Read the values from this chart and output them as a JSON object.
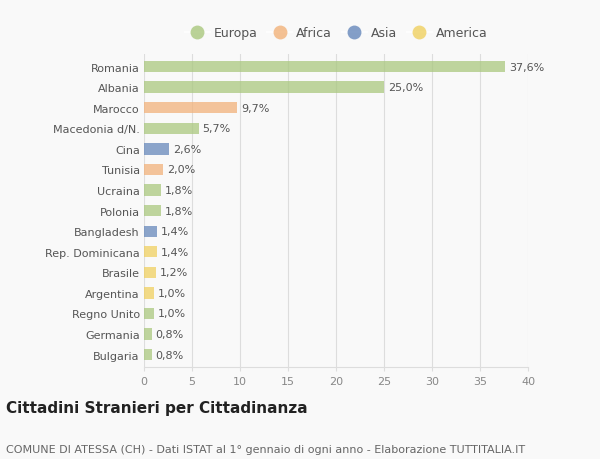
{
  "categories": [
    "Romania",
    "Albania",
    "Marocco",
    "Macedonia d/N.",
    "Cina",
    "Tunisia",
    "Ucraina",
    "Polonia",
    "Bangladesh",
    "Rep. Dominicana",
    "Brasile",
    "Argentina",
    "Regno Unito",
    "Germania",
    "Bulgaria"
  ],
  "values": [
    37.6,
    25.0,
    9.7,
    5.7,
    2.6,
    2.0,
    1.8,
    1.8,
    1.4,
    1.4,
    1.2,
    1.0,
    1.0,
    0.8,
    0.8
  ],
  "labels": [
    "37,6%",
    "25,0%",
    "9,7%",
    "5,7%",
    "2,6%",
    "2,0%",
    "1,8%",
    "1,8%",
    "1,4%",
    "1,4%",
    "1,2%",
    "1,0%",
    "1,0%",
    "0,8%",
    "0,8%"
  ],
  "continents": [
    "Europa",
    "Europa",
    "Africa",
    "Europa",
    "Asia",
    "Africa",
    "Europa",
    "Europa",
    "Asia",
    "America",
    "America",
    "America",
    "Europa",
    "Europa",
    "Europa"
  ],
  "continent_colors": {
    "Europa": "#aac87e",
    "Africa": "#f2b27a",
    "Asia": "#6688bb",
    "America": "#f0d060"
  },
  "legend_order": [
    "Europa",
    "Africa",
    "Asia",
    "America"
  ],
  "title": "Cittadini Stranieri per Cittadinanza",
  "subtitle": "COMUNE DI ATESSA (CH) - Dati ISTAT al 1° gennaio di ogni anno - Elaborazione TUTTITALIA.IT",
  "xlim": [
    0,
    40
  ],
  "xticks": [
    0,
    5,
    10,
    15,
    20,
    25,
    30,
    35,
    40
  ],
  "background_color": "#f9f9f9",
  "grid_color": "#dddddd",
  "bar_height": 0.55,
  "title_fontsize": 11,
  "subtitle_fontsize": 8,
  "label_fontsize": 8,
  "tick_fontsize": 8,
  "legend_fontsize": 9
}
